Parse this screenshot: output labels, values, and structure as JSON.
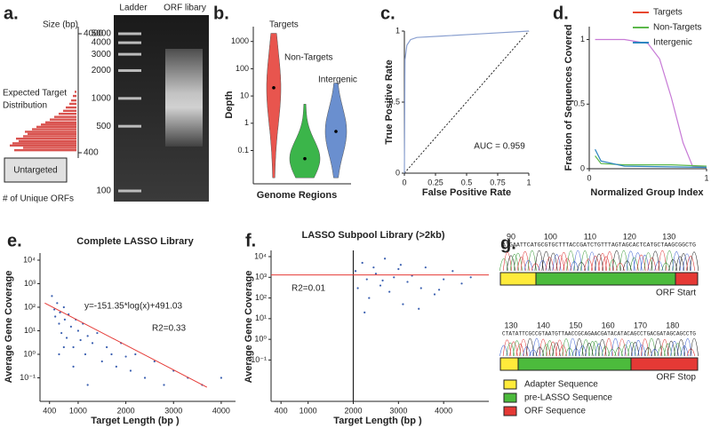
{
  "figure": {
    "a": {
      "label": "a.",
      "size_axis_title": "Size (bp)",
      "size_ticks": [
        4000,
        400
      ],
      "annotation": [
        "Expected Target",
        "Distribution"
      ],
      "untargeted": "Untargeted",
      "x_axis_title": "# of Unique ORFs",
      "distribution": {
        "color": "#d9534f",
        "sizes": [
          420,
          440,
          460,
          480,
          500,
          525,
          550,
          575,
          600,
          630,
          660,
          690,
          720,
          760,
          800,
          850,
          900,
          960,
          1030,
          1100,
          1200,
          1300
        ],
        "counts": [
          70,
          60,
          75,
          72,
          65,
          68,
          60,
          55,
          58,
          50,
          45,
          40,
          35,
          30,
          25,
          20,
          15,
          12,
          8,
          6,
          4,
          2
        ]
      },
      "gel_lanes": [
        "Ladder",
        "ORF libary"
      ],
      "ladder_ticks": [
        5000,
        4000,
        3000,
        2000,
        1000,
        500,
        100
      ]
    },
    "b": {
      "label": "b.",
      "y_axis_title": "Depth",
      "x_axis_title": "Genome Regions",
      "log_scale": true,
      "ylim": [
        0.006,
        3500
      ],
      "yticks": [
        1000,
        100,
        10,
        1,
        0.1
      ],
      "groups": [
        {
          "name": "Targets",
          "color": "#e8554e",
          "min": 0.01,
          "median": 20,
          "max": 2000
        },
        {
          "name": "Non-Targets",
          "color": "#3bb54a",
          "min": 0.01,
          "median": 0.05,
          "max": 5
        },
        {
          "name": "Intergenic",
          "color": "#6a8fcf",
          "min": 0.01,
          "median": 0.5,
          "max": 30
        }
      ]
    },
    "c": {
      "label": "c.",
      "x_axis_title": "False Positive Rate",
      "y_axis_title": "True Positive Rate",
      "annotation": "AUC = 0.959",
      "xlim": [
        0,
        1
      ],
      "ylim": [
        0,
        1
      ],
      "xticks": [
        0,
        0.25,
        0.5,
        0.75,
        1
      ],
      "yticks": [
        0,
        0.5,
        1
      ],
      "color": "#8aa0d0",
      "x": [
        0,
        0.005,
        0.02,
        0.05,
        0.1,
        0.3,
        0.6,
        1
      ],
      "y": [
        0,
        0.8,
        0.9,
        0.94,
        0.955,
        0.965,
        0.98,
        1
      ]
    },
    "d": {
      "label": "d.",
      "x_axis_title": "Normalized Group Index",
      "y_axis_title": "Fraction of Sequences Covered",
      "xlim": [
        0,
        1
      ],
      "ylim": [
        0,
        1.1
      ],
      "xticks": [
        0,
        1
      ],
      "yticks": [
        0,
        0.5,
        1
      ],
      "series": [
        {
          "name": "Targets",
          "legend_color": "#e8472e",
          "color": "#c77ad6",
          "x": [
            0.05,
            0.3,
            0.5,
            0.6,
            0.7,
            0.8,
            0.88,
            1
          ],
          "y": [
            1,
            1,
            0.97,
            0.85,
            0.55,
            0.2,
            0.02,
            0.01
          ]
        },
        {
          "name": "Non-Targets",
          "legend_color": "#5cb84a",
          "color": "#5cb84a",
          "x": [
            0.05,
            0.1,
            0.3,
            0.7,
            1
          ],
          "y": [
            0.1,
            0.04,
            0.03,
            0.03,
            0.02
          ]
        },
        {
          "name": "Intergenic",
          "legend_color": "#2e86c1",
          "color": "#2e86c1",
          "x": [
            0.05,
            0.1,
            0.3,
            1
          ],
          "y": [
            0.15,
            0.06,
            0.02,
            0.01
          ]
        }
      ]
    },
    "e": {
      "label": "e.",
      "title": "Complete LASSO Library",
      "x_axis_title": "Target Length (bp )",
      "y_axis_title": "Average Gene Coverage",
      "equation": "y=-151.35*log(x)+491.03",
      "r2": "R2=0.33",
      "log_y": true,
      "xlim": [
        200,
        4300
      ],
      "ylim": [
        0.01,
        20000
      ],
      "xticks": [
        400,
        1000,
        2000,
        3000,
        4000
      ],
      "yticks": [
        {
          "value": 10000,
          "label": "10⁴"
        },
        {
          "value": 1000,
          "label": "10³"
        },
        {
          "value": 100,
          "label": "10²"
        },
        {
          "value": 10,
          "label": "10¹"
        },
        {
          "value": 1,
          "label": "10⁰"
        },
        {
          "value": 0.1,
          "label": "10⁻¹"
        }
      ],
      "color": "#3a5fb0",
      "fit_color": "#e53935",
      "fit_line": {
        "x": [
          300,
          3700
        ],
        "y": [
          150,
          0.04
        ]
      },
      "x": [
        450,
        500,
        520,
        560,
        600,
        620,
        650,
        700,
        720,
        760,
        800,
        850,
        900,
        950,
        1000,
        1050,
        1100,
        1150,
        1200,
        1300,
        1400,
        1500,
        1600,
        1700,
        1800,
        1900,
        2000,
        2100,
        2200,
        2400,
        2600,
        2800,
        3000,
        3300,
        3600,
        4000,
        600,
        700,
        900,
        1200
      ],
      "y": [
        300,
        80,
        40,
        150,
        20,
        60,
        8,
        100,
        30,
        5,
        50,
        15,
        2,
        30,
        10,
        4,
        20,
        1,
        6,
        3,
        8,
        0.5,
        2,
        1,
        0.3,
        3,
        0.8,
        0.2,
        1,
        0.1,
        0.5,
        0.05,
        0.2,
        0.1,
        0.05,
        0.1,
        1,
        2,
        0.3,
        0.05
      ]
    },
    "f": {
      "label": "f.",
      "title": "LASSO Subpool Library (>2kb)",
      "x_axis_title": "Target Length (bp )",
      "y_axis_title": "Average Gene Coverage",
      "r2": "R2=0.01",
      "log_y": true,
      "threshold": 2000,
      "fit_level": 1300,
      "xlim": [
        180,
        5000
      ],
      "ylim": [
        0.001,
        20000
      ],
      "xticks": [
        400,
        1000,
        2000,
        3000,
        4000
      ],
      "yticks": [
        {
          "value": 10000,
          "label": "10⁴"
        },
        {
          "value": 1000,
          "label": "10³"
        },
        {
          "value": 100,
          "label": "10²"
        },
        {
          "value": 10,
          "label": "10¹"
        },
        {
          "value": 1,
          "label": "10⁰"
        },
        {
          "value": 0.1,
          "label": "10⁻¹"
        }
      ],
      "color": "#3a5fb0",
      "fit_color": "#e53935",
      "x": [
        2050,
        2100,
        2200,
        2300,
        2350,
        2450,
        2500,
        2600,
        2700,
        2800,
        2900,
        3000,
        3100,
        3200,
        3300,
        3500,
        3600,
        3800,
        4000,
        4200,
        4400,
        4600,
        2250,
        2650,
        3050,
        3450,
        3900
      ],
      "y": [
        2000,
        300,
        5000,
        800,
        100,
        3000,
        1500,
        400,
        8000,
        200,
        1000,
        2500,
        50,
        600,
        1200,
        300,
        3000,
        150,
        800,
        2000,
        500,
        1000,
        20,
        700,
        4000,
        30,
        250
      ]
    },
    "g": {
      "label": "g.",
      "start": {
        "positions": [
          90,
          100,
          110,
          120,
          130
        ],
        "sequence": "ATGAATTCATGCGTGCTTTACCGATCTGTTTAGTAGCACTCATGCTAAGCGGCTG",
        "caption": "ORF Start"
      },
      "stop": {
        "positions": [
          130,
          140,
          150,
          160,
          170,
          180
        ],
        "sequence": "CTATATTCGCCGTAATGTTAACCGCAGAACGATACATACAGCCTGACGATAGCAGCCTG",
        "caption": "ORF Stop"
      },
      "legend": [
        {
          "name": "Adapter Sequence",
          "color": "#ffeb3b"
        },
        {
          "name": "pre-LASSO Sequence",
          "color": "#4cbb3c"
        },
        {
          "name": "ORF Sequence",
          "color": "#e53935"
        }
      ]
    }
  }
}
